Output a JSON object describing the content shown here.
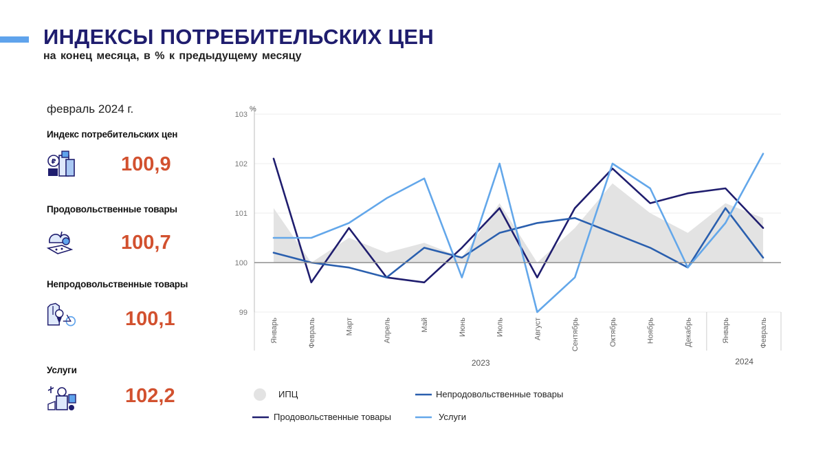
{
  "header": {
    "title": "ИНДЕКСЫ ПОТРЕБИТЕЛЬСКИХ ЦЕН",
    "subtitle": "на конец месяца, в % к предыдущему месяцу"
  },
  "summary": {
    "period": "февраль 2024 г.",
    "items": [
      {
        "label": "Индекс потребительских цен",
        "value": "100,9",
        "icon": "cpi-icon"
      },
      {
        "label": "Продовольственные товары",
        "value": "100,7",
        "icon": "food-icon"
      },
      {
        "label": "Непродовольственные товары",
        "value": "100,1",
        "icon": "nonfood-icon"
      },
      {
        "label": "Услуги",
        "value": "102,2",
        "icon": "services-icon"
      }
    ]
  },
  "colors": {
    "title": "#1f1d6e",
    "value": "#d2512f",
    "cpi": "#e3e3e3",
    "food": "#1f1d6e",
    "nonfood": "#2a5fae",
    "services": "#63a7ea"
  },
  "chart_data": {
    "type": "line",
    "ylabel": "%",
    "ylim": [
      99,
      103
    ],
    "yticks": [
      "99",
      "100",
      "101",
      "102",
      "103"
    ],
    "categories": [
      "Январь",
      "Февраль",
      "Март",
      "Апрель",
      "Май",
      "Июнь",
      "Июль",
      "Август",
      "Сентябрь",
      "Октябрь",
      "Ноябрь",
      "Декабрь",
      "Январь",
      "Февраль"
    ],
    "year_groups": [
      {
        "label": "2023",
        "from": 0,
        "to": 11
      },
      {
        "label": "2024",
        "from": 12,
        "to": 13
      }
    ],
    "baseline": 100,
    "series": [
      {
        "name": "ИПЦ",
        "kind": "area",
        "values": [
          101.1,
          100.0,
          100.5,
          100.2,
          100.4,
          100.1,
          101.2,
          100.0,
          100.7,
          101.6,
          101.0,
          100.6,
          101.2,
          100.9
        ]
      },
      {
        "name": "Продовольственные товары",
        "kind": "line",
        "values": [
          102.1,
          99.6,
          100.7,
          99.7,
          99.6,
          100.3,
          101.1,
          99.7,
          101.1,
          101.9,
          101.2,
          101.4,
          101.5,
          100.7
        ]
      },
      {
        "name": "Непродовольственные товары",
        "kind": "line",
        "values": [
          100.2,
          100.0,
          99.9,
          99.7,
          100.3,
          100.1,
          100.6,
          100.8,
          100.9,
          100.6,
          100.3,
          99.9,
          101.1,
          100.1
        ]
      },
      {
        "name": "Услуги",
        "kind": "line",
        "values": [
          100.5,
          100.5,
          100.8,
          101.3,
          101.7,
          99.7,
          102.0,
          99.0,
          99.7,
          102.0,
          101.5,
          99.9,
          100.8,
          102.2
        ]
      }
    ],
    "legend": [
      {
        "name": "ИПЦ",
        "marker": "circle"
      },
      {
        "name": "Непродовольственные товары",
        "marker": "line"
      },
      {
        "name": "Продовольственные товары",
        "marker": "line"
      },
      {
        "name": "Услуги",
        "marker": "line"
      }
    ]
  }
}
